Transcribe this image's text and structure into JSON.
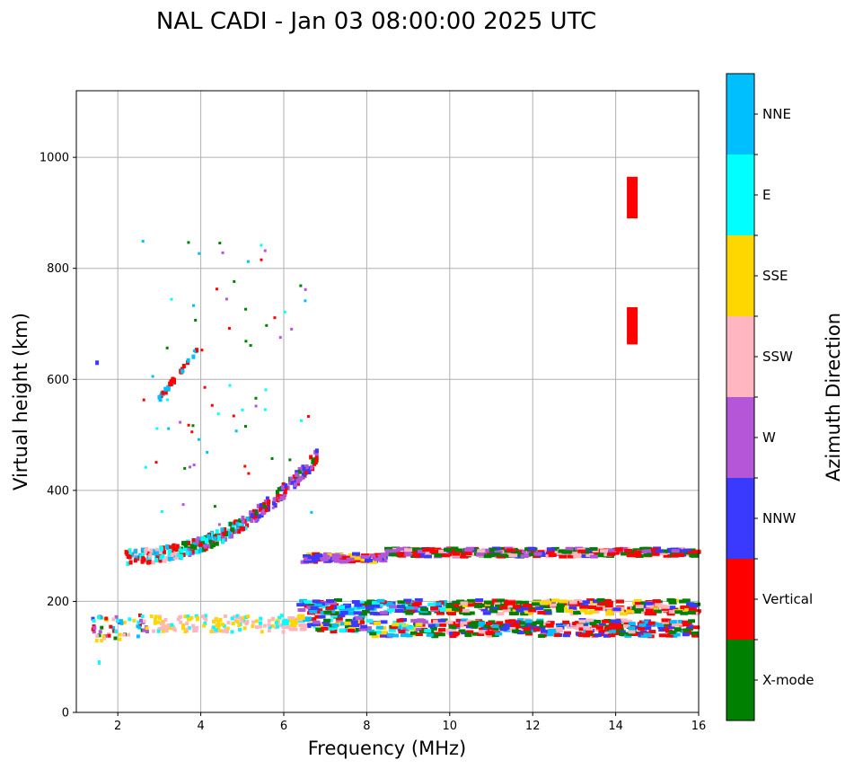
{
  "chart_data": {
    "type": "scatter",
    "title": "NAL CADI - Jan 03 08:00:00 2025 UTC",
    "xlabel": "Frequency (MHz)",
    "ylabel": "Virtual height (km)",
    "xlim": [
      1,
      16
    ],
    "ylim": [
      0,
      1120
    ],
    "xticks": [
      2,
      4,
      6,
      8,
      10,
      12,
      14,
      16
    ],
    "yticks": [
      0,
      200,
      400,
      600,
      800,
      1000
    ],
    "grid": true,
    "colorbar": {
      "label": "Azimuth Direction",
      "categories": [
        {
          "name": "X-mode",
          "color": "#008000"
        },
        {
          "name": "Vertical",
          "color": "#ff0000"
        },
        {
          "name": "NNW",
          "color": "#3a3aff"
        },
        {
          "name": "W",
          "color": "#b556d8"
        },
        {
          "name": "SSW",
          "color": "#ffb6c1"
        },
        {
          "name": "SSE",
          "color": "#ffd700"
        },
        {
          "name": "E",
          "color": "#00ffff"
        },
        {
          "name": "NNE",
          "color": "#00bfff"
        }
      ]
    },
    "traces": [
      {
        "name": "E-layer trace",
        "x_range": [
          1.4,
          16
        ],
        "height_km": 160,
        "spread_km": 30
      },
      {
        "name": "Upper E-layer trace",
        "x_range": [
          6.4,
          16
        ],
        "height_km": 190,
        "spread_km": 25
      },
      {
        "name": "F-layer trace",
        "x_range": [
          2.2,
          6.8
        ],
        "height_km_start": 280,
        "height_km_end": 460
      },
      {
        "name": "Spread F trace",
        "x_range": [
          6.5,
          16
        ],
        "height_km": 288,
        "spread_km": 15
      },
      {
        "name": "Multiple reflection",
        "x_range": [
          3.0,
          3.9
        ],
        "height_km_start": 565,
        "height_km_end": 650
      }
    ],
    "features": [
      {
        "name": "Vertical echo block",
        "x": 14.4,
        "y_range": [
          890,
          965
        ],
        "category": "Vertical"
      },
      {
        "name": "Vertical echo block",
        "x": 14.4,
        "y_range": [
          663,
          730
        ],
        "category": "Vertical"
      }
    ]
  }
}
